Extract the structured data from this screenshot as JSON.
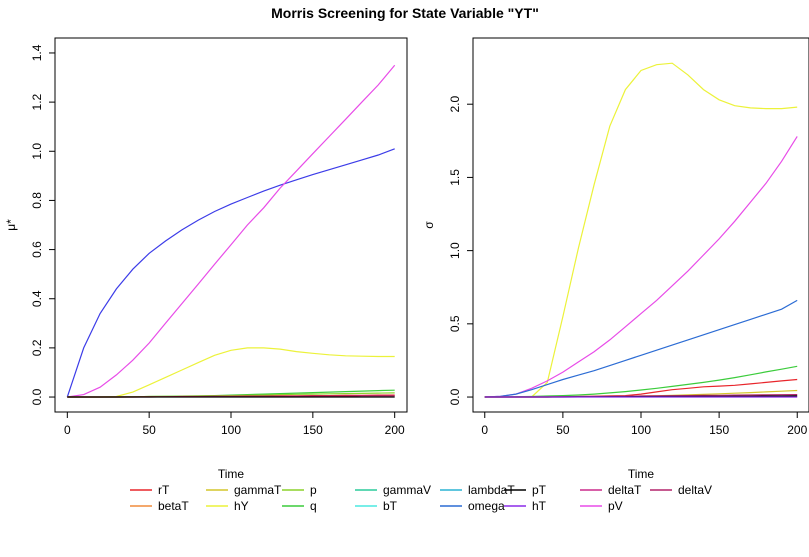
{
  "title": "Morris Screening for State Variable \"YT\"",
  "colors": {
    "rT": "#e8262c",
    "betaT": "#f08c3c",
    "gammaT": "#d4c62c",
    "hY": "#ecf23a",
    "p": "#8cd22c",
    "q": "#3ccc3c",
    "gammaV": "#2ccc9c",
    "bT": "#4ce8e0",
    "lambdaT": "#2cb4d4",
    "omega": "#2c6cd4",
    "pT": "#000000",
    "hT": "#8c2ce8",
    "deltaT": "#cc2c8c",
    "pV": "#e84ce8",
    "deltaV": "#b4246c",
    "mu_omega": "#3c3ce8"
  },
  "chart_data": [
    {
      "type": "line",
      "xlabel": "Time",
      "ylabel": "μ*",
      "xlim": [
        0,
        200
      ],
      "ylim": [
        0,
        1.4
      ],
      "xticks": [
        "0",
        "50",
        "100",
        "150",
        "200"
      ],
      "yticks": [
        "0.0",
        "0.2",
        "0.4",
        "0.6",
        "0.8",
        "1.0",
        "1.2",
        "1.4"
      ],
      "x": [
        0,
        10,
        20,
        30,
        40,
        50,
        60,
        70,
        80,
        90,
        100,
        110,
        120,
        130,
        140,
        150,
        160,
        170,
        180,
        190,
        200
      ],
      "series": [
        {
          "name": "omega",
          "colorKey": "mu_omega",
          "values": [
            0,
            0.2,
            0.34,
            0.44,
            0.52,
            0.585,
            0.635,
            0.68,
            0.72,
            0.755,
            0.785,
            0.812,
            0.838,
            0.862,
            0.884,
            0.905,
            0.925,
            0.945,
            0.965,
            0.985,
            1.01
          ]
        },
        {
          "name": "pV",
          "colorKey": "pV",
          "values": [
            0,
            0.01,
            0.04,
            0.09,
            0.15,
            0.22,
            0.3,
            0.38,
            0.46,
            0.54,
            0.62,
            0.7,
            0.77,
            0.85,
            0.92,
            0.99,
            1.06,
            1.13,
            1.2,
            1.27,
            1.35
          ]
        },
        {
          "name": "hY",
          "colorKey": "hY",
          "values": [
            0,
            0,
            0,
            0.002,
            0.02,
            0.05,
            0.08,
            0.11,
            0.14,
            0.17,
            0.19,
            0.2,
            0.2,
            0.195,
            0.185,
            0.178,
            0.172,
            0.168,
            0.166,
            0.165,
            0.165
          ]
        },
        {
          "name": "q",
          "colorKey": "q",
          "values": [
            0,
            0,
            0,
            0,
            0.001,
            0.002,
            0.003,
            0.004,
            0.005,
            0.006,
            0.008,
            0.01,
            0.012,
            0.014,
            0.016,
            0.018,
            0.02,
            0.022,
            0.024,
            0.026,
            0.028
          ]
        },
        {
          "name": "p",
          "colorKey": "p",
          "values": [
            0,
            0,
            0,
            0,
            0.001,
            0.002,
            0.003,
            0.003,
            0.004,
            0.005,
            0.006,
            0.007,
            0.008,
            0.01,
            0.011,
            0.012,
            0.013,
            0.014,
            0.015,
            0.016,
            0.017
          ]
        },
        {
          "name": "rT",
          "colorKey": "rT",
          "values": [
            0,
            0,
            0,
            0,
            0,
            0.001,
            0.001,
            0.002,
            0.002,
            0.003,
            0.003,
            0.004,
            0.004,
            0.005,
            0.005,
            0.006,
            0.006,
            0.007,
            0.007,
            0.008,
            0.008
          ]
        },
        {
          "name": "deltaV",
          "colorKey": "deltaV",
          "values": [
            0,
            0,
            0,
            0,
            0,
            0,
            0.001,
            0.001,
            0.001,
            0.002,
            0.002,
            0.002,
            0.003,
            0.003,
            0.003,
            0.004,
            0.004,
            0.004,
            0.005,
            0.005,
            0.005
          ]
        },
        {
          "name": "pT",
          "colorKey": "pT",
          "values": [
            0,
            0,
            0,
            0,
            0,
            0,
            0,
            0,
            0,
            0,
            0,
            0,
            0,
            0,
            0,
            0,
            0,
            0,
            0,
            0,
            0
          ]
        }
      ]
    },
    {
      "type": "line",
      "xlabel": "Time",
      "ylabel": "σ",
      "xlim": [
        0,
        200
      ],
      "ylim": [
        0,
        2.35
      ],
      "xticks": [
        "0",
        "50",
        "100",
        "150",
        "200"
      ],
      "yticks": [
        "0.0",
        "0.5",
        "1.0",
        "1.5",
        "2.0"
      ],
      "x": [
        0,
        10,
        20,
        30,
        40,
        50,
        60,
        70,
        80,
        90,
        100,
        110,
        120,
        130,
        140,
        150,
        160,
        170,
        180,
        190,
        200
      ],
      "series": [
        {
          "name": "hY",
          "colorKey": "hY",
          "values": [
            0,
            0,
            0,
            0,
            0.1,
            0.55,
            1.02,
            1.45,
            1.85,
            2.1,
            2.23,
            2.27,
            2.28,
            2.2,
            2.1,
            2.03,
            1.99,
            1.975,
            1.97,
            1.97,
            1.98
          ]
        },
        {
          "name": "pV",
          "colorKey": "pV",
          "values": [
            0,
            0.005,
            0.02,
            0.06,
            0.11,
            0.17,
            0.24,
            0.31,
            0.39,
            0.48,
            0.57,
            0.66,
            0.76,
            0.86,
            0.97,
            1.08,
            1.2,
            1.33,
            1.46,
            1.61,
            1.78
          ]
        },
        {
          "name": "omega",
          "colorKey": "omega",
          "values": [
            0,
            0.005,
            0.02,
            0.05,
            0.085,
            0.12,
            0.15,
            0.18,
            0.215,
            0.25,
            0.285,
            0.32,
            0.355,
            0.39,
            0.425,
            0.46,
            0.495,
            0.53,
            0.565,
            0.6,
            0.66
          ]
        },
        {
          "name": "q",
          "colorKey": "q",
          "values": [
            0,
            0,
            0.002,
            0.004,
            0.007,
            0.01,
            0.014,
            0.02,
            0.028,
            0.037,
            0.048,
            0.06,
            0.073,
            0.086,
            0.1,
            0.116,
            0.133,
            0.152,
            0.172,
            0.19,
            0.21
          ]
        },
        {
          "name": "rT",
          "colorKey": "rT",
          "values": [
            0,
            0,
            0,
            0,
            0,
            0.002,
            0.004,
            0.006,
            0.008,
            0.01,
            0.02,
            0.035,
            0.05,
            0.06,
            0.07,
            0.075,
            0.08,
            0.09,
            0.1,
            0.11,
            0.12
          ]
        },
        {
          "name": "gammaT",
          "colorKey": "gammaT",
          "values": [
            0,
            0,
            0,
            0,
            0,
            0.001,
            0.002,
            0.003,
            0.004,
            0.005,
            0.007,
            0.009,
            0.012,
            0.015,
            0.018,
            0.022,
            0.026,
            0.03,
            0.035,
            0.04,
            0.045
          ]
        },
        {
          "name": "deltaV",
          "colorKey": "deltaV",
          "values": [
            0,
            0,
            0,
            0,
            0,
            0.002,
            0.003,
            0.004,
            0.005,
            0.006,
            0.007,
            0.008,
            0.009,
            0.01,
            0.011,
            0.012,
            0.013,
            0.014,
            0.015,
            0.016,
            0.017
          ]
        },
        {
          "name": "pT",
          "colorKey": "pT",
          "values": [
            0,
            0,
            0,
            0,
            0,
            0,
            0.001,
            0.001,
            0.002,
            0.002,
            0.003,
            0.003,
            0.004,
            0.004,
            0.005,
            0.005,
            0.006,
            0.006,
            0.007,
            0.007,
            0.008
          ]
        },
        {
          "name": "hT",
          "colorKey": "hT",
          "values": [
            0,
            0,
            0,
            0,
            0,
            0,
            0,
            0,
            0,
            0,
            0,
            0,
            0,
            0,
            0,
            0,
            0,
            0,
            0,
            0,
            0
          ]
        }
      ]
    }
  ],
  "legend": {
    "columns": [
      [
        {
          "label": "rT",
          "colorKey": "rT"
        },
        {
          "label": "betaT",
          "colorKey": "betaT"
        }
      ],
      [
        {
          "label": "gammaT",
          "colorKey": "gammaT"
        },
        {
          "label": "hY",
          "colorKey": "hY"
        }
      ],
      [
        {
          "label": "p",
          "colorKey": "p"
        },
        {
          "label": "q",
          "colorKey": "q"
        }
      ],
      [
        {
          "label": "gammaV",
          "colorKey": "gammaV"
        },
        {
          "label": "bT",
          "colorKey": "bT"
        }
      ],
      [
        {
          "label": "lambdaT",
          "colorKey": "lambdaT"
        },
        {
          "label": "omega",
          "colorKey": "omega"
        }
      ],
      [
        {
          "label": "pT",
          "colorKey": "pT"
        },
        {
          "label": "hT",
          "colorKey": "hT"
        }
      ],
      [
        {
          "label": "deltaT",
          "colorKey": "deltaT"
        },
        {
          "label": "pV",
          "colorKey": "pV"
        }
      ],
      [
        {
          "label": "deltaV",
          "colorKey": "deltaV"
        }
      ]
    ]
  }
}
